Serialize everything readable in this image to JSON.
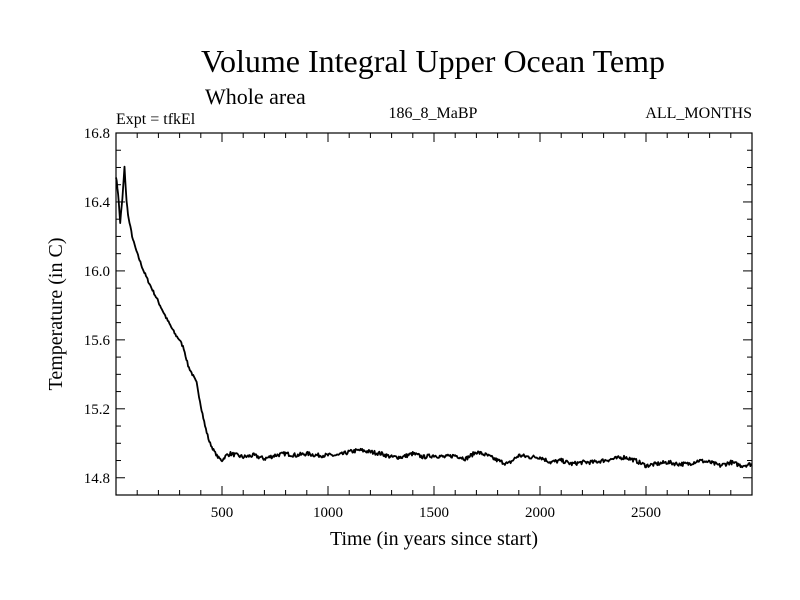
{
  "chart_data": {
    "type": "line",
    "title": "Volume Integral Upper Ocean Temp",
    "subtitle": "Whole area",
    "header_left": "Expt = tfkEl",
    "header_center": "186_8_MaBP",
    "header_right": "ALL_MONTHS",
    "xlabel": "Time (in years since start)",
    "ylabel": "Temperature (in C)",
    "xlim": [
      0,
      3000
    ],
    "ylim": [
      14.7,
      16.8
    ],
    "xticks": [
      500,
      1000,
      1500,
      2000,
      2500
    ],
    "xtick_labels": [
      "500",
      "1000",
      "1500",
      "2000",
      "2500"
    ],
    "yticks": [
      14.8,
      15.2,
      15.6,
      16.0,
      16.4,
      16.8
    ],
    "ytick_labels": [
      "14.8",
      "15.2",
      "15.6",
      "16.0",
      "16.4",
      "16.8"
    ],
    "grid": false,
    "line_color": "#000000",
    "series": [
      {
        "x": [
          0,
          10,
          20,
          30,
          40,
          50,
          60,
          80,
          100,
          130,
          160,
          200,
          240,
          280,
          300,
          320,
          340,
          360,
          380,
          400,
          420,
          440,
          460,
          480,
          500,
          520,
          540,
          600,
          650,
          700,
          750,
          800,
          850,
          900,
          950,
          1000,
          1050,
          1100,
          1150,
          1200,
          1250,
          1300,
          1350,
          1400,
          1450,
          1500,
          1550,
          1600,
          1650,
          1700,
          1750,
          1800,
          1850,
          1900,
          1950,
          2000,
          2050,
          2100,
          2150,
          2200,
          2250,
          2300,
          2350,
          2400,
          2450,
          2500,
          2550,
          2600,
          2650,
          2700,
          2750,
          2800,
          2850,
          2900,
          2950,
          3000
        ],
        "y": [
          16.55,
          16.45,
          16.28,
          16.42,
          16.6,
          16.4,
          16.3,
          16.18,
          16.1,
          16.0,
          15.92,
          15.82,
          15.72,
          15.63,
          15.6,
          15.55,
          15.45,
          15.4,
          15.35,
          15.22,
          15.1,
          15.01,
          14.96,
          14.92,
          14.9,
          14.93,
          14.94,
          14.92,
          14.93,
          14.91,
          14.93,
          14.94,
          14.93,
          14.94,
          14.93,
          14.93,
          14.93,
          14.95,
          14.96,
          14.95,
          14.94,
          14.92,
          14.92,
          14.94,
          14.92,
          14.93,
          14.92,
          14.93,
          14.91,
          14.95,
          14.93,
          14.9,
          14.88,
          14.93,
          14.92,
          14.92,
          14.89,
          14.9,
          14.88,
          14.89,
          14.89,
          14.9,
          14.91,
          14.92,
          14.9,
          14.87,
          14.88,
          14.89,
          14.88,
          14.88,
          14.9,
          14.89,
          14.87,
          14.89,
          14.87,
          14.88
        ]
      }
    ]
  }
}
